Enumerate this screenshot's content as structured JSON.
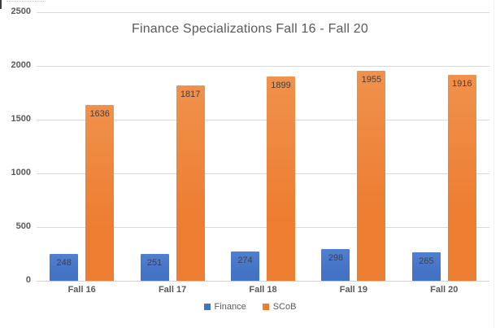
{
  "chart_data": {
    "type": "bar",
    "title": "Finance Specializations Fall 16 - Fall 20",
    "categories": [
      "Fall 16",
      "Fall 17",
      "Fall 18",
      "Fall 19",
      "Fall 20"
    ],
    "series": [
      {
        "name": "Finance",
        "color": "#4472C4",
        "color_top": "#5080d2",
        "values": [
          248,
          251,
          274,
          298,
          265
        ]
      },
      {
        "name": "SCoB",
        "color": "#ED7D31",
        "color_top": "#f0914c",
        "values": [
          1636,
          1817,
          1899,
          1955,
          1916
        ]
      }
    ],
    "xlabel": "",
    "ylabel": "",
    "ylim": [
      0,
      2500
    ],
    "ytick_interval": 500,
    "yticks": [
      "0",
      "500",
      "1000",
      "1500",
      "2000",
      "2500"
    ],
    "grid": true,
    "legend_position": "bottom",
    "data_labels": "inside-end"
  },
  "styles": {
    "background": "#ffffff",
    "gridline_color": "#d9d9d9",
    "axis_line_color": "#d3d3d3",
    "axis_text_color": "#595959",
    "title_text_color": "#595959",
    "data_label_color": "#404040",
    "legend_text_color": "#595959"
  }
}
